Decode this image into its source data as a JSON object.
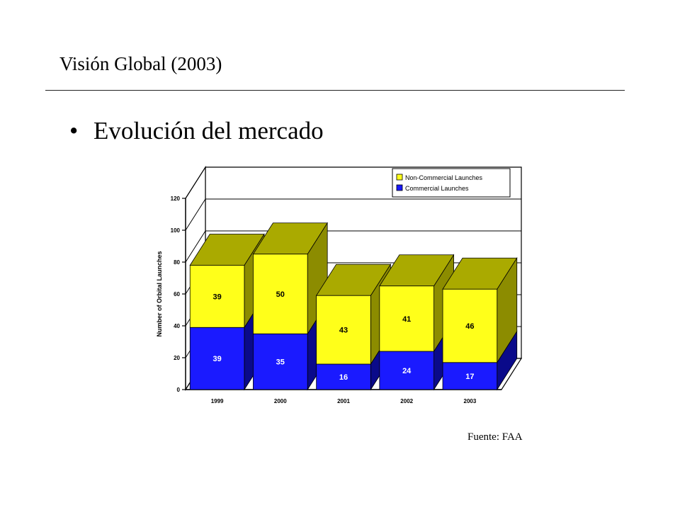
{
  "slide": {
    "title": "Visión Global (2003)",
    "bullet": "Evolución del mercado",
    "source": "Fuente: FAA"
  },
  "colors": {
    "commercial": "#1a1aff",
    "commercial_side": "#0a0a8a",
    "noncommercial": "#ffff1a",
    "noncommercial_top": "#aaaa00",
    "noncommercial_side": "#8c8c00"
  },
  "chart_data": {
    "type": "bar",
    "stacked": true,
    "style": "3d",
    "categories": [
      "1999",
      "2000",
      "2001",
      "2002",
      "2003"
    ],
    "series": [
      {
        "name": "Commercial Launches",
        "values": [
          39,
          35,
          16,
          24,
          17
        ]
      },
      {
        "name": "Non-Commercial Launches",
        "values": [
          39,
          50,
          43,
          41,
          46
        ]
      }
    ],
    "ylabel": "Number of Orbital Launches",
    "xlabel": "",
    "ylim": [
      0,
      120
    ],
    "yticks": [
      0,
      20,
      40,
      60,
      80,
      100,
      120
    ],
    "legend": {
      "position": "top-right",
      "order": [
        "Non-Commercial Launches",
        "Commercial Launches"
      ]
    },
    "grid": true
  }
}
